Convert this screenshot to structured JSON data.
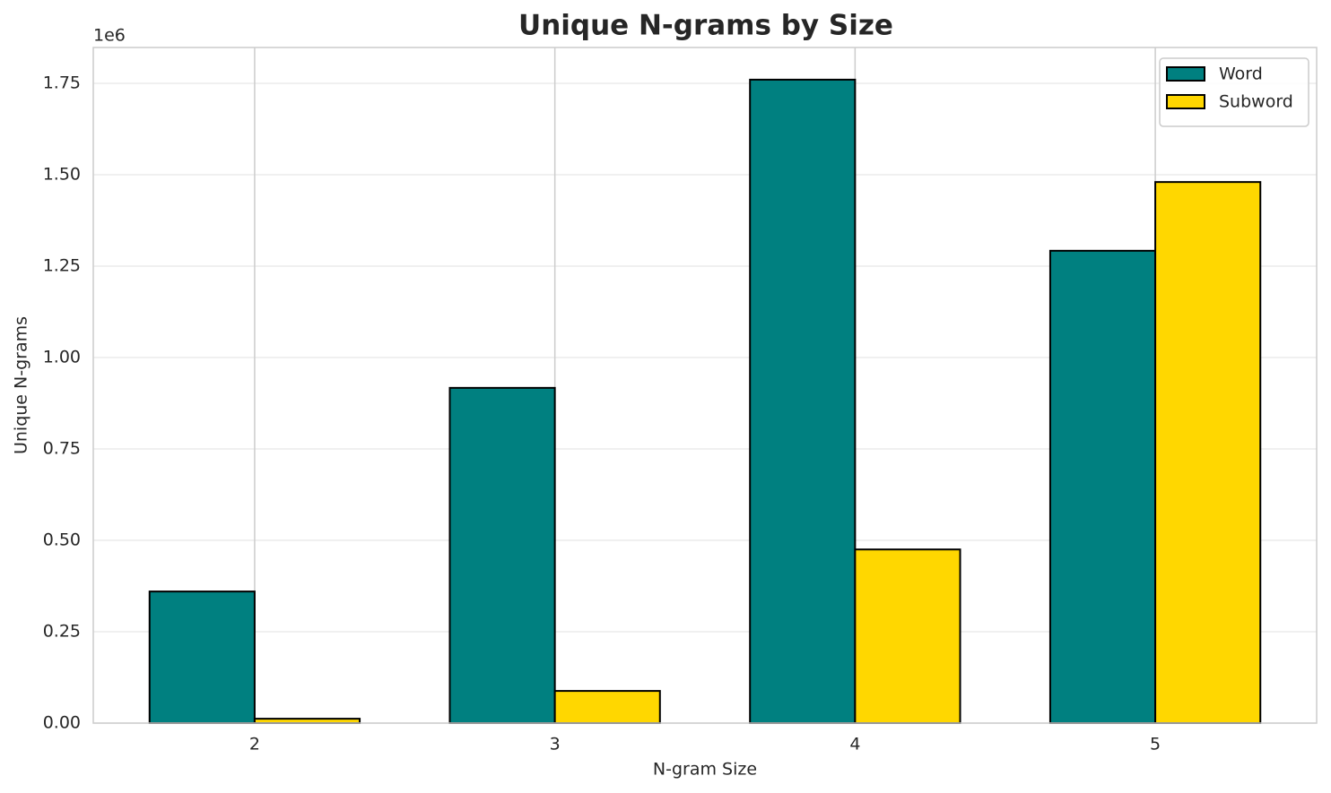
{
  "chart_data": {
    "type": "bar",
    "title": "Unique N-grams by Size",
    "xlabel": "N-gram Size",
    "ylabel": "Unique N-grams",
    "y_offset_label": "1e6",
    "categories": [
      "2",
      "3",
      "4",
      "5"
    ],
    "series": [
      {
        "name": "Word",
        "color": "#008080",
        "values": [
          360000,
          917000,
          1760000,
          1292000
        ]
      },
      {
        "name": "Subword",
        "color": "#ffd700",
        "values": [
          12000,
          88000,
          475000,
          1480000
        ]
      }
    ],
    "ylim": [
      0,
      1848000
    ],
    "yticks": [
      {
        "value": 0,
        "label": "0.00"
      },
      {
        "value": 250000,
        "label": "0.25"
      },
      {
        "value": 500000,
        "label": "0.50"
      },
      {
        "value": 750000,
        "label": "0.75"
      },
      {
        "value": 1000000,
        "label": "1.00"
      },
      {
        "value": 1250000,
        "label": "1.25"
      },
      {
        "value": 1500000,
        "label": "1.50"
      },
      {
        "value": 1750000,
        "label": "1.75"
      }
    ],
    "grid": true,
    "legend": "upper right"
  }
}
